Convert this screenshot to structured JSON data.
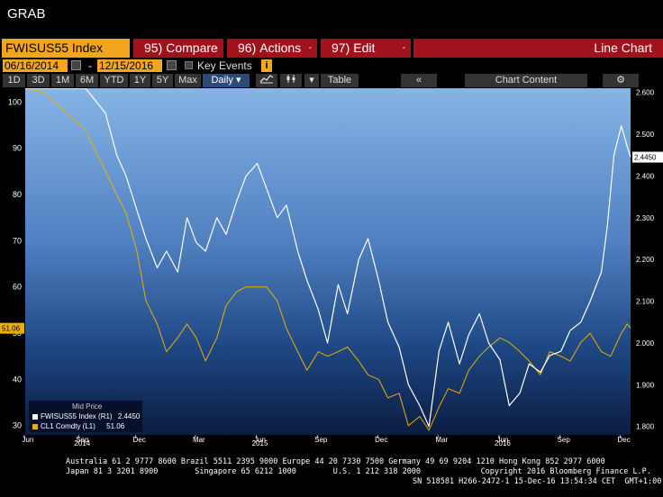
{
  "window": {
    "title": "GRAB"
  },
  "command_bar": {
    "ticker": "FWISUS55 Index",
    "compare": {
      "num": "95)",
      "label": "Compare"
    },
    "actions": {
      "num": "96)",
      "label": "Actions"
    },
    "edit": {
      "num": "97)",
      "label": "Edit"
    },
    "caret": "-",
    "chart_type": "Line Chart"
  },
  "date_bar": {
    "start": "06/16/2014",
    "separator": "-",
    "end": "12/15/2016",
    "key_events": "Key Events",
    "info": "i"
  },
  "range_bar": {
    "ranges": [
      "1D",
      "3D",
      "1M",
      "6M",
      "YTD",
      "1Y",
      "5Y",
      "Max"
    ],
    "frequency": "Daily",
    "table": "Table",
    "chart_content": "Chart Content"
  },
  "legend": {
    "title": "Mid Price",
    "rows": [
      {
        "label": "FWISUS55 Index (R1)",
        "value": "2.4450",
        "color": "#ffffff"
      },
      {
        "label": "CL1 Comdty  (L1)",
        "value": "51.06",
        "color": "#e8b000"
      }
    ]
  },
  "footer": {
    "line1": "Australia 61 2 9777 8600 Brazil 5511 2395 9000 Europe 44 20 7330 7500 Germany 49 69 9204 1210 Hong Kong 852 2977 6000",
    "line2": "Japan 81 3 3201 8900        Singapore 65 6212 1000        U.S. 1 212 318 2000             Copyright 2016 Bloomberg Finance L.P.",
    "line3": "SN 518581 H266-2472-1 15-Dec-16 13:54:34 CET  GMT+1:00"
  },
  "colors": {
    "accent_orange": "#f2a61e",
    "accent_red": "#a0131c",
    "series_fwisus55": "#ffffff",
    "series_cl1": "#e8b000"
  },
  "chart_data": {
    "type": "line",
    "x_range": [
      "2014-06-16",
      "2016-12-15"
    ],
    "left_axis": {
      "ticks": [
        30,
        40,
        50,
        60,
        70,
        80,
        90,
        100
      ],
      "range": [
        28,
        103
      ]
    },
    "right_axis": {
      "ticks": [
        "1.800",
        "1.900",
        "2.000",
        "2.100",
        "2.200",
        "2.300",
        "2.400",
        "2.500",
        "2.600"
      ],
      "range": [
        1.78,
        2.61
      ]
    },
    "x_month_labels": [
      "Jun",
      "Sep",
      "Dec",
      "Mar",
      "Jun",
      "Sep",
      "Dec",
      "Mar",
      "Jun",
      "Sep",
      "Dec"
    ],
    "x_year_labels": [
      "2014",
      "2015",
      "2016"
    ],
    "last_value_tags": {
      "left": "51.06",
      "right": "2.4450"
    },
    "series": [
      {
        "name": "FWISUS55 Index (R1)",
        "axis": "right",
        "points": [
          [
            "2014-06-16",
            2.63
          ],
          [
            "2014-07-15",
            2.64
          ],
          [
            "2014-08-15",
            2.62
          ],
          [
            "2014-09-15",
            2.66
          ],
          [
            "2014-10-15",
            2.55
          ],
          [
            "2014-11-01",
            2.45
          ],
          [
            "2014-11-15",
            2.4
          ],
          [
            "2014-12-01",
            2.32
          ],
          [
            "2014-12-15",
            2.25
          ],
          [
            "2015-01-01",
            2.18
          ],
          [
            "2015-01-15",
            2.22
          ],
          [
            "2015-02-01",
            2.17
          ],
          [
            "2015-02-15",
            2.3
          ],
          [
            "2015-03-01",
            2.24
          ],
          [
            "2015-03-15",
            2.22
          ],
          [
            "2015-04-01",
            2.3
          ],
          [
            "2015-04-15",
            2.26
          ],
          [
            "2015-05-01",
            2.34
          ],
          [
            "2015-05-15",
            2.4
          ],
          [
            "2015-06-01",
            2.43
          ],
          [
            "2015-06-15",
            2.37
          ],
          [
            "2015-07-01",
            2.3
          ],
          [
            "2015-07-15",
            2.33
          ],
          [
            "2015-08-01",
            2.22
          ],
          [
            "2015-08-15",
            2.15
          ],
          [
            "2015-09-01",
            2.08
          ],
          [
            "2015-09-15",
            2.0
          ],
          [
            "2015-10-01",
            2.14
          ],
          [
            "2015-10-15",
            2.07
          ],
          [
            "2015-11-01",
            2.2
          ],
          [
            "2015-11-15",
            2.25
          ],
          [
            "2015-12-01",
            2.15
          ],
          [
            "2015-12-15",
            2.05
          ],
          [
            "2016-01-01",
            1.99
          ],
          [
            "2016-01-15",
            1.9
          ],
          [
            "2016-02-01",
            1.85
          ],
          [
            "2016-02-15",
            1.8
          ],
          [
            "2016-03-01",
            1.98
          ],
          [
            "2016-03-15",
            2.05
          ],
          [
            "2016-04-01",
            1.95
          ],
          [
            "2016-04-15",
            2.02
          ],
          [
            "2016-05-01",
            2.07
          ],
          [
            "2016-05-15",
            2.0
          ],
          [
            "2016-06-01",
            1.96
          ],
          [
            "2016-06-15",
            1.85
          ],
          [
            "2016-07-01",
            1.88
          ],
          [
            "2016-07-15",
            1.95
          ],
          [
            "2016-08-01",
            1.93
          ],
          [
            "2016-08-15",
            1.97
          ],
          [
            "2016-09-01",
            1.98
          ],
          [
            "2016-09-15",
            2.03
          ],
          [
            "2016-10-01",
            2.05
          ],
          [
            "2016-10-15",
            2.1
          ],
          [
            "2016-11-01",
            2.17
          ],
          [
            "2016-11-10",
            2.28
          ],
          [
            "2016-11-20",
            2.45
          ],
          [
            "2016-12-01",
            2.52
          ],
          [
            "2016-12-10",
            2.47
          ],
          [
            "2016-12-15",
            2.445
          ]
        ]
      },
      {
        "name": "CL1 Comdty  (L1)",
        "axis": "left",
        "points": [
          [
            "2014-06-16",
            106
          ],
          [
            "2014-07-15",
            102
          ],
          [
            "2014-08-15",
            98
          ],
          [
            "2014-09-15",
            94
          ],
          [
            "2014-10-15",
            85
          ],
          [
            "2014-11-01",
            80
          ],
          [
            "2014-11-15",
            76
          ],
          [
            "2014-12-01",
            68
          ],
          [
            "2014-12-15",
            57
          ],
          [
            "2015-01-01",
            52
          ],
          [
            "2015-01-15",
            46
          ],
          [
            "2015-02-01",
            49
          ],
          [
            "2015-02-15",
            52
          ],
          [
            "2015-03-01",
            49
          ],
          [
            "2015-03-15",
            44
          ],
          [
            "2015-04-01",
            49
          ],
          [
            "2015-04-15",
            56
          ],
          [
            "2015-05-01",
            59
          ],
          [
            "2015-05-15",
            60
          ],
          [
            "2015-06-01",
            60
          ],
          [
            "2015-06-15",
            60
          ],
          [
            "2015-07-01",
            57
          ],
          [
            "2015-07-15",
            51
          ],
          [
            "2015-08-01",
            46
          ],
          [
            "2015-08-15",
            42
          ],
          [
            "2015-09-01",
            46
          ],
          [
            "2015-09-15",
            45
          ],
          [
            "2015-10-01",
            46
          ],
          [
            "2015-10-15",
            47
          ],
          [
            "2015-11-01",
            44
          ],
          [
            "2015-11-15",
            41
          ],
          [
            "2015-12-01",
            40
          ],
          [
            "2015-12-15",
            36
          ],
          [
            "2016-01-01",
            37
          ],
          [
            "2016-01-15",
            30
          ],
          [
            "2016-02-01",
            32
          ],
          [
            "2016-02-15",
            29
          ],
          [
            "2016-03-01",
            34
          ],
          [
            "2016-03-15",
            38
          ],
          [
            "2016-04-01",
            37
          ],
          [
            "2016-04-15",
            42
          ],
          [
            "2016-05-01",
            45
          ],
          [
            "2016-05-15",
            47
          ],
          [
            "2016-06-01",
            49
          ],
          [
            "2016-06-15",
            48
          ],
          [
            "2016-07-01",
            46
          ],
          [
            "2016-07-15",
            44
          ],
          [
            "2016-08-01",
            41
          ],
          [
            "2016-08-15",
            46
          ],
          [
            "2016-09-01",
            45
          ],
          [
            "2016-09-15",
            44
          ],
          [
            "2016-10-01",
            48
          ],
          [
            "2016-10-15",
            50
          ],
          [
            "2016-11-01",
            46
          ],
          [
            "2016-11-15",
            45
          ],
          [
            "2016-12-01",
            50
          ],
          [
            "2016-12-10",
            52
          ],
          [
            "2016-12-15",
            51.06
          ]
        ]
      }
    ]
  }
}
